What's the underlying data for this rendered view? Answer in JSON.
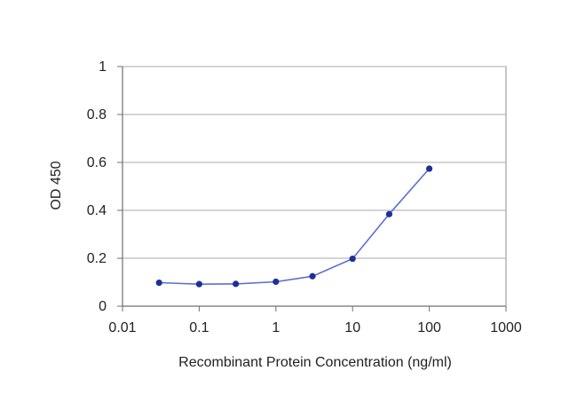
{
  "chart_data": {
    "type": "line",
    "title": "",
    "xlabel": "Recombinant Protein Concentration (ng/ml)",
    "ylabel": "OD 450",
    "x_scale": "log",
    "xlim": [
      0.01,
      1000
    ],
    "ylim": [
      0,
      1
    ],
    "grid": "horizontal",
    "x_ticks": [
      0.01,
      0.1,
      1,
      10,
      100,
      1000
    ],
    "x_tick_labels": [
      "0.01",
      "0.1",
      "1",
      "10",
      "100",
      "1000"
    ],
    "y_ticks": [
      0,
      0.2,
      0.4,
      0.6,
      0.8,
      1
    ],
    "y_tick_labels": [
      "0",
      "0.2",
      "0.4",
      "0.6",
      "0.8",
      "1"
    ],
    "series": [
      {
        "color": "#1f2f9a",
        "points": [
          {
            "x": 0.03,
            "y": 0.098
          },
          {
            "x": 0.1,
            "y": 0.092
          },
          {
            "x": 0.3,
            "y": 0.093
          },
          {
            "x": 1,
            "y": 0.102
          },
          {
            "x": 3,
            "y": 0.125
          },
          {
            "x": 10,
            "y": 0.198
          },
          {
            "x": 30,
            "y": 0.384
          },
          {
            "x": 100,
            "y": 0.574
          }
        ]
      }
    ],
    "colors": {
      "line": "#5b6fd0",
      "marker": "#1f2f9a",
      "grid": "#a8a8a8",
      "axis": "#6f6f6f",
      "frame": "#8f8f8f"
    }
  }
}
